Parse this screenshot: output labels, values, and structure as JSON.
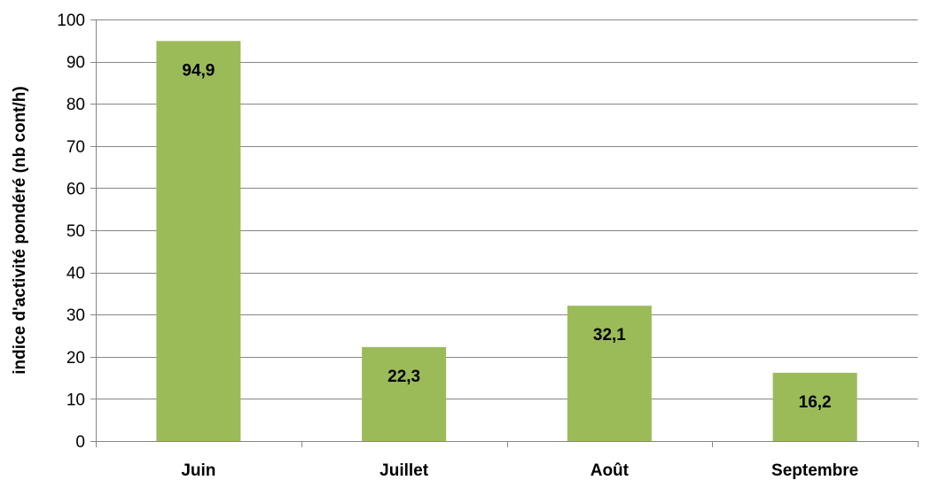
{
  "chart_data": {
    "type": "bar",
    "title": "",
    "xlabel": "",
    "ylabel": "indice d'activité pondéré (nb cont/h)",
    "categories": [
      "Juin",
      "Juillet",
      "Août",
      "Septembre"
    ],
    "values": [
      94.9,
      22.3,
      32.1,
      16.2
    ],
    "value_labels": [
      "94,9",
      "22,3",
      "32,1",
      "16,2"
    ],
    "ylim": [
      0,
      100
    ],
    "yticks": [
      0,
      10,
      20,
      30,
      40,
      50,
      60,
      70,
      80,
      90,
      100
    ],
    "grid": true,
    "legend": "none",
    "bar_color": "#9BBB59",
    "gridline_color": "#868686"
  }
}
